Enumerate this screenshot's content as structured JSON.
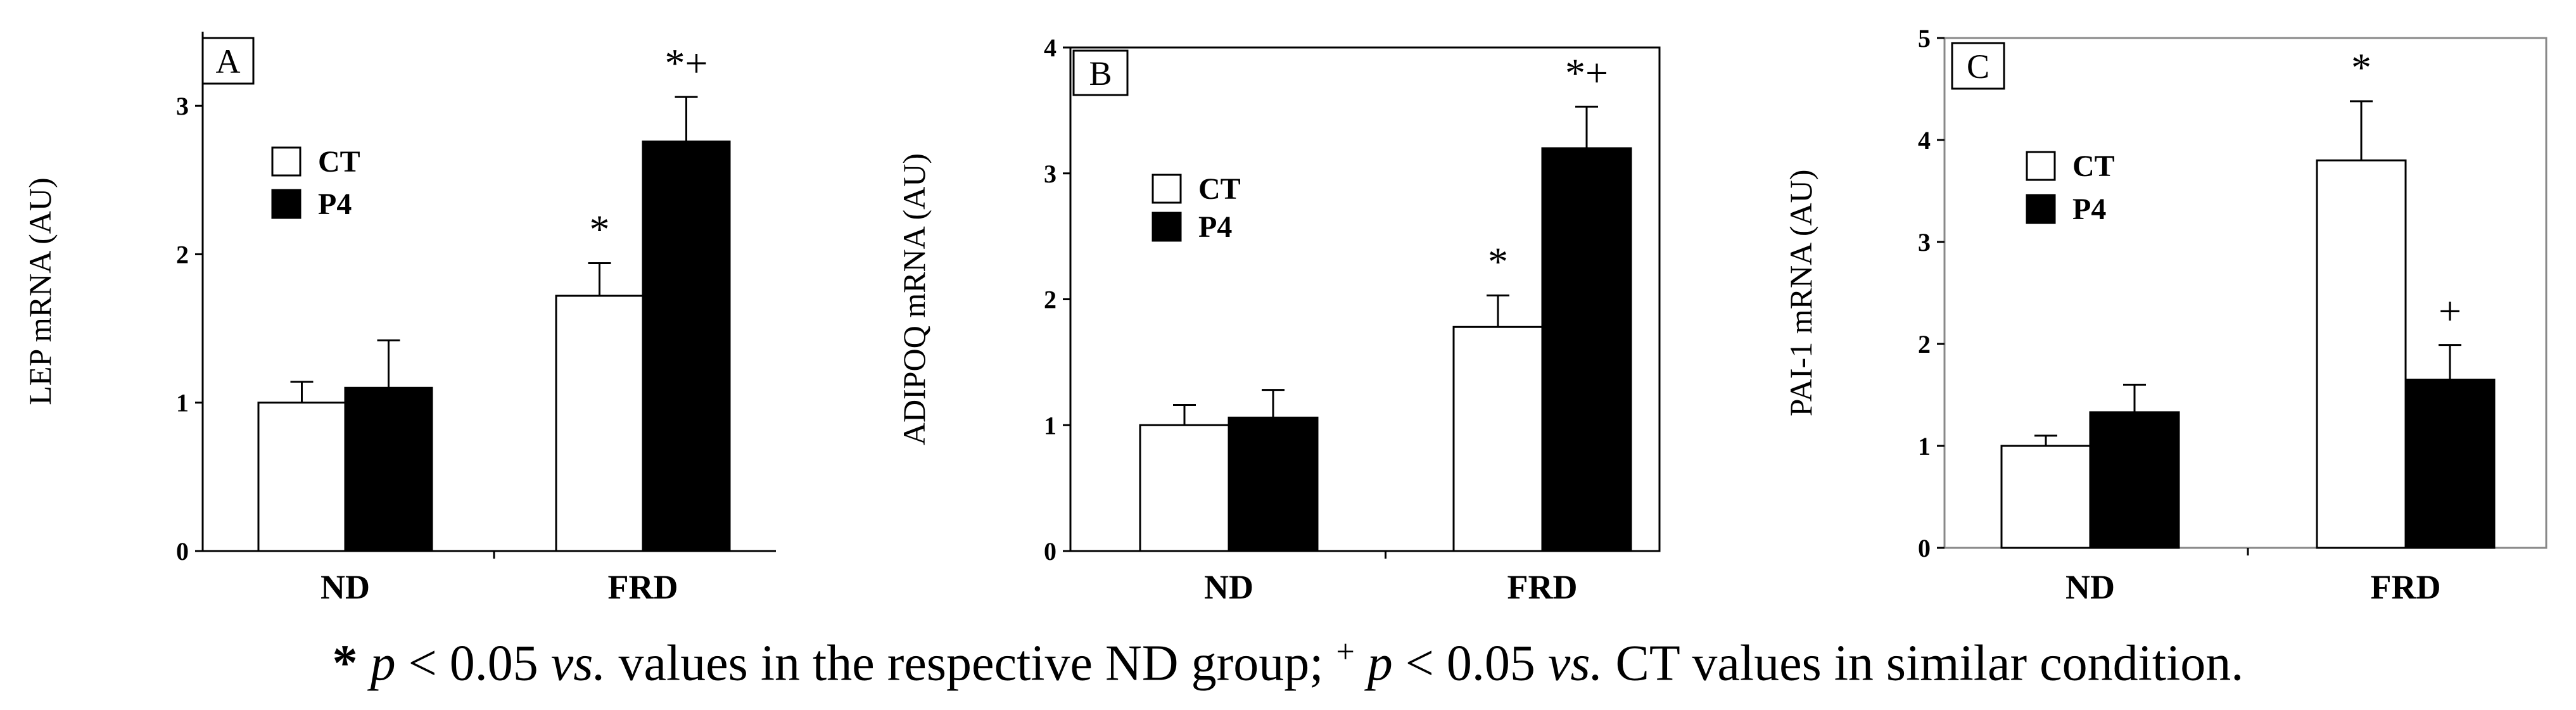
{
  "chart_data": [
    {
      "type": "bar",
      "panel": "A",
      "ylabel": "LEP mRNA (AU)",
      "ylim": [
        0,
        3.5
      ],
      "yticks": [
        "0",
        "1",
        "2",
        "3"
      ],
      "categories": [
        "ND",
        "FRD"
      ],
      "series": [
        {
          "name": "CT",
          "values": [
            1.0,
            1.72
          ],
          "errors": [
            0.14,
            0.22
          ]
        },
        {
          "name": "P4",
          "values": [
            1.1,
            2.76
          ],
          "errors": [
            0.32,
            0.3
          ]
        }
      ],
      "annotations": [
        {
          "series": "CT",
          "category": "FRD",
          "text": "*"
        },
        {
          "series": "P4",
          "category": "FRD",
          "text": "*+"
        }
      ],
      "legend": [
        "CT",
        "P4"
      ]
    },
    {
      "type": "bar",
      "panel": "B",
      "ylabel": "ADIPOQ mRNA (AU)",
      "ylim": [
        0,
        4
      ],
      "yticks": [
        "0",
        "1",
        "2",
        "3",
        "4"
      ],
      "categories": [
        "ND",
        "FRD"
      ],
      "series": [
        {
          "name": "CT",
          "values": [
            1.0,
            1.78
          ],
          "errors": [
            0.16,
            0.25
          ]
        },
        {
          "name": "P4",
          "values": [
            1.06,
            3.2
          ],
          "errors": [
            0.22,
            0.33
          ]
        }
      ],
      "annotations": [
        {
          "series": "CT",
          "category": "FRD",
          "text": "*"
        },
        {
          "series": "P4",
          "category": "FRD",
          "text": "*+"
        }
      ],
      "legend": [
        "CT",
        "P4"
      ]
    },
    {
      "type": "bar",
      "panel": "C",
      "ylabel": "PAI-1 mRNA (AU)",
      "ylim": [
        0,
        5
      ],
      "yticks": [
        "0",
        "1",
        "2",
        "3",
        "4",
        "5"
      ],
      "categories": [
        "ND",
        "FRD"
      ],
      "series": [
        {
          "name": "CT",
          "values": [
            1.0,
            3.8
          ],
          "errors": [
            0.1,
            0.58
          ]
        },
        {
          "name": "P4",
          "values": [
            1.33,
            1.65
          ],
          "errors": [
            0.27,
            0.34
          ]
        }
      ],
      "annotations": [
        {
          "series": "CT",
          "category": "FRD",
          "text": "*"
        },
        {
          "series": "P4",
          "category": "FRD",
          "text": "+"
        }
      ],
      "legend": [
        "CT",
        "P4"
      ]
    }
  ],
  "footnote": {
    "star": "*",
    "p1": "p",
    "lt1": " < 0.05 ",
    "vs1": "vs.",
    "rest1": " values in the respective ND group; ",
    "plus": "+",
    "p2": " p",
    "lt2": " < 0.05 ",
    "vs2": "vs.",
    "rest2": " CT values in similar condition."
  }
}
